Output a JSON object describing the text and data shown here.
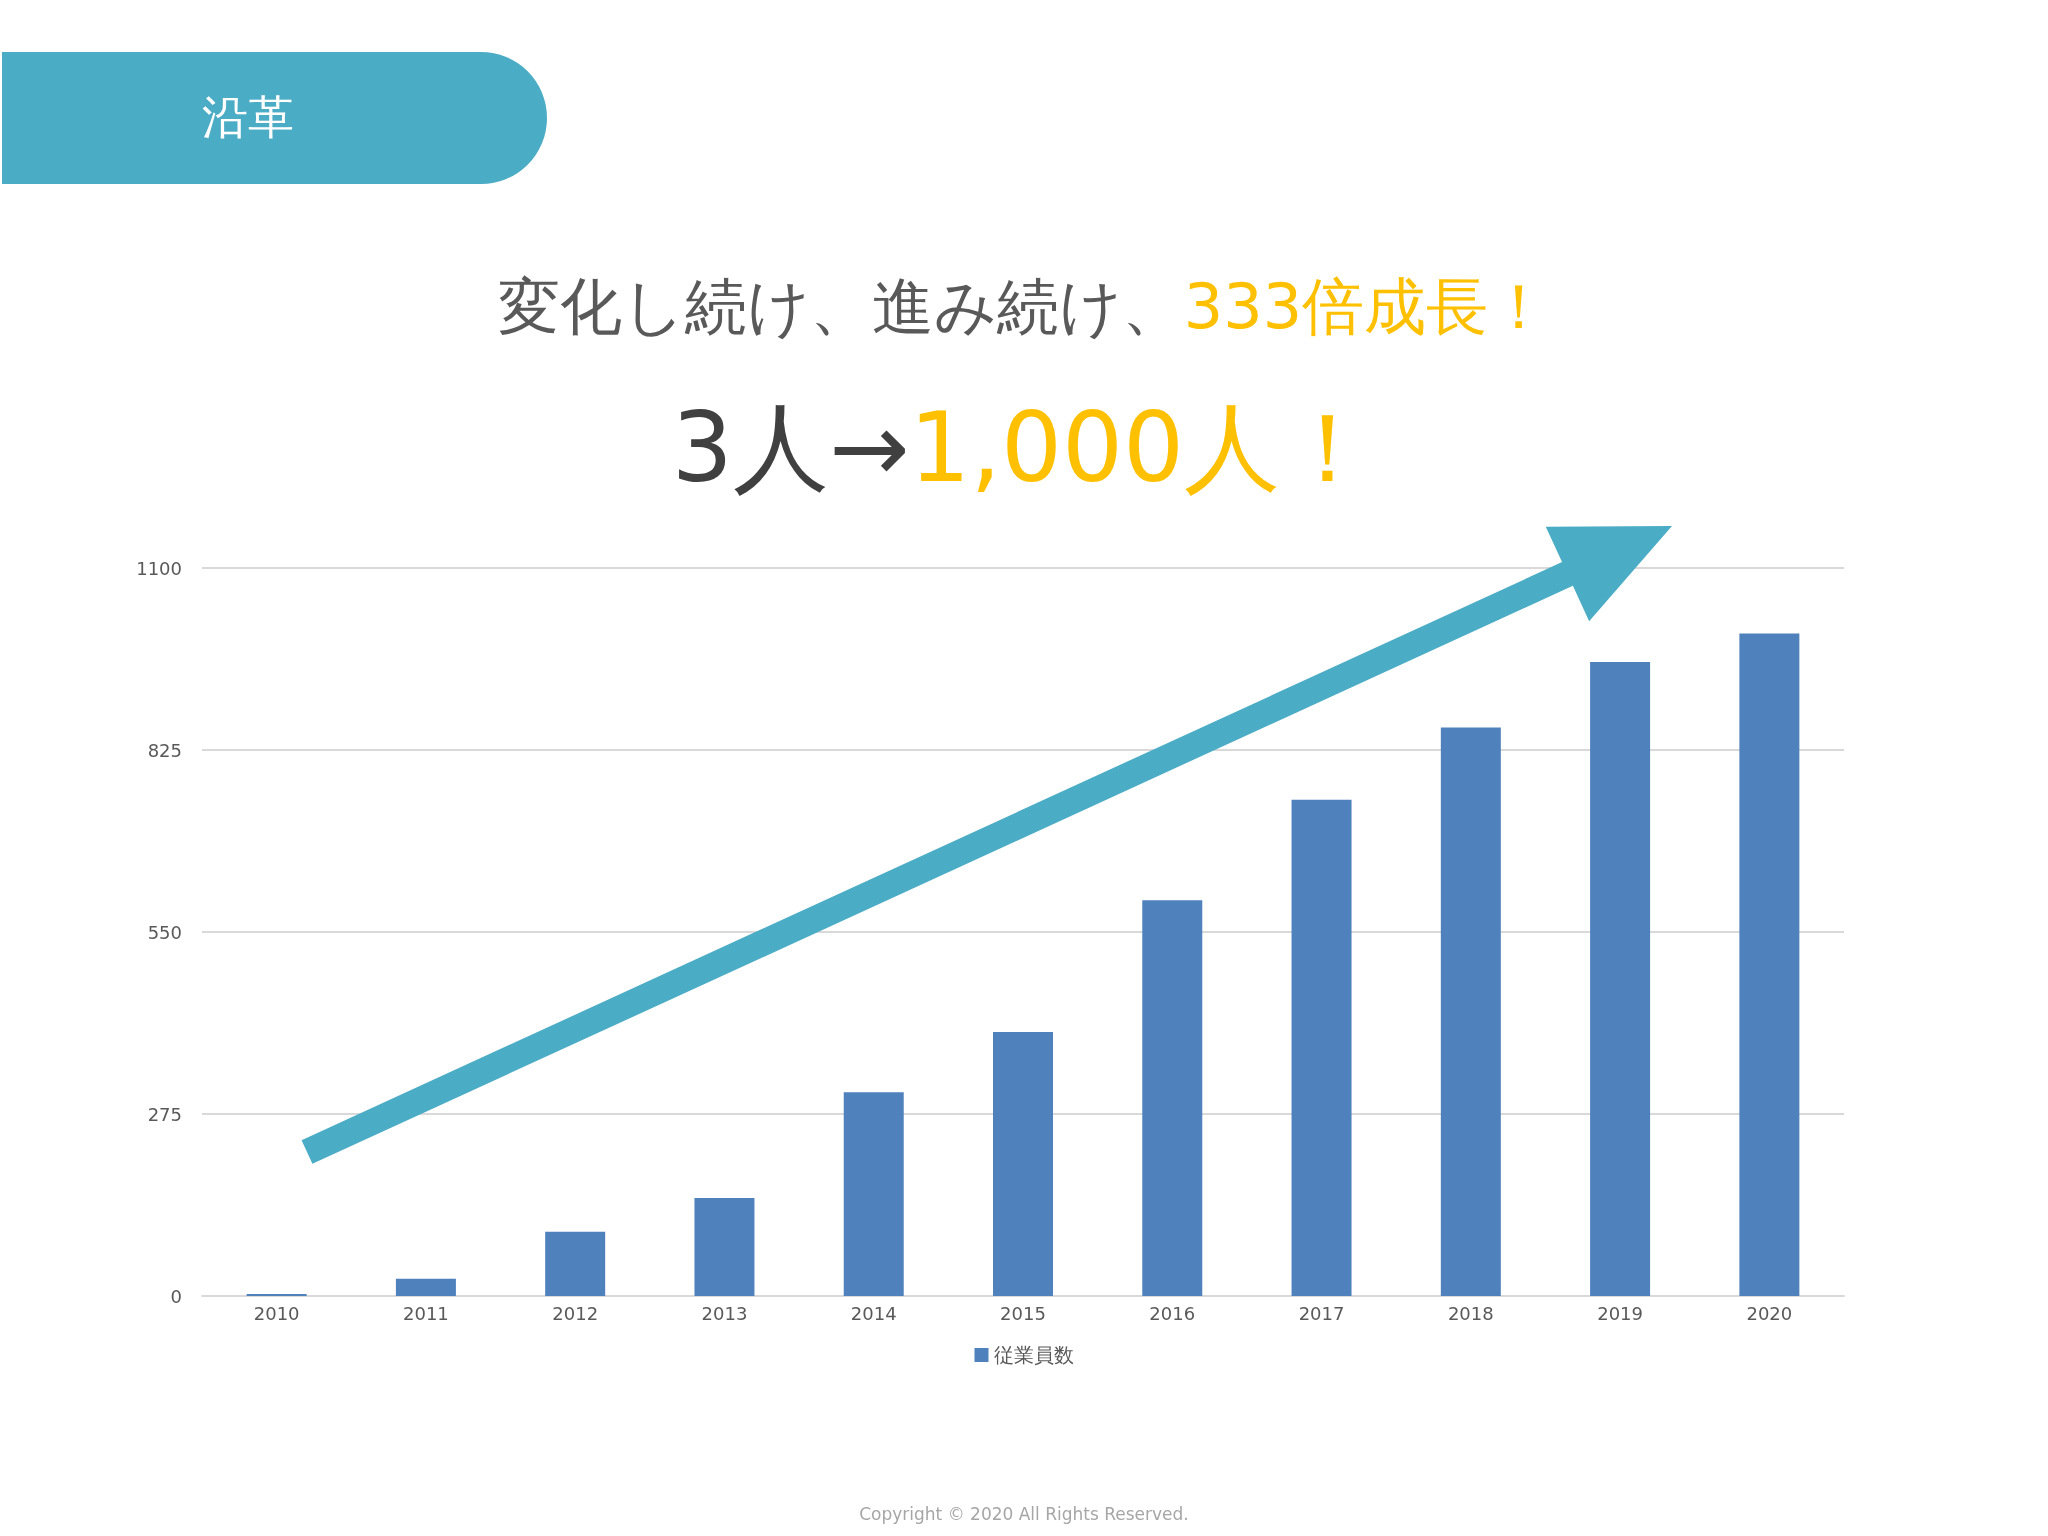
{
  "chart_data": {
    "type": "bar",
    "title": "沿革",
    "annotations": [
      "変化し続け、進み続け、",
      "333倍成長！",
      "3人→",
      "1,000人！",
      "Copyright © 2020 All Rights Reserved."
    ],
    "categories": [
      "2010",
      "2011",
      "2012",
      "2013",
      "2014",
      "2015",
      "2016",
      "2017",
      "2018",
      "2019",
      "2020"
    ],
    "series": [
      {
        "name": "従業員数",
        "color": "#4f81bd",
        "values": [
          3,
          26,
          97,
          148,
          308,
          399,
          598,
          750,
          859,
          958,
          1001
        ]
      }
    ],
    "ylim": [
      0,
      1100
    ],
    "yticks": [
      0,
      275,
      550,
      825,
      1100
    ],
    "grid": "y",
    "legend": "bottom"
  }
}
